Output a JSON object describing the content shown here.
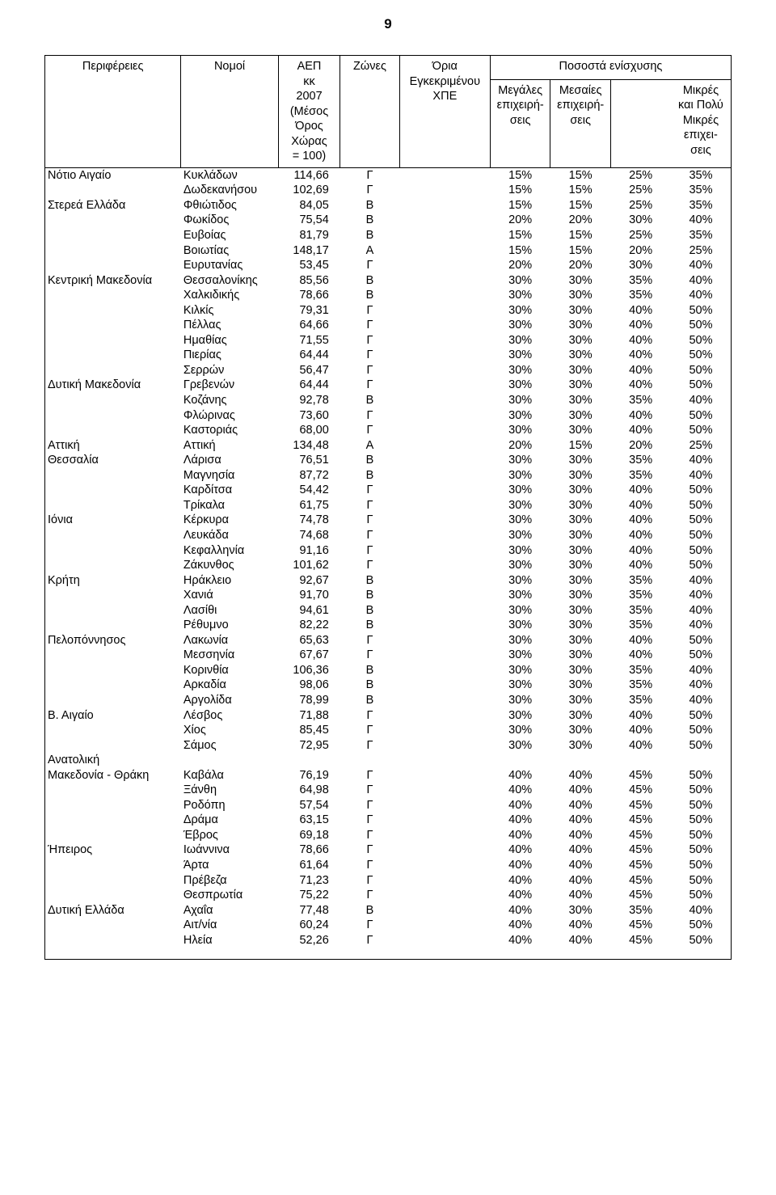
{
  "pageNumber": "9",
  "header": {
    "region": "Περιφέρειες",
    "nomos": "Νομοί",
    "aep": "ΑΕΠ\nκκ\n2007\n(Μέσος\nΌρος\nΧώρας\n= 100)",
    "zone": "Ζώνες",
    "limit": "Όρια\nΕγκεκριμένου\nΧΠΕ",
    "pctGroup": "Ποσοστά ενίσχυσης",
    "large": "Μεγάλες\nεπιχειρή-\nσεις",
    "medium": "Μεσαίες\nεπιχειρή-\nσεις",
    "small": "Μικρές\nκαι Πολύ\nΜικρές\nεπιχει-\nσεις"
  },
  "rows": [
    {
      "region": "Νότιο Αιγαίο",
      "nomos": "Κυκλάδων",
      "aep": "114,66",
      "zone": "Γ",
      "limit": "",
      "l": "15%",
      "m": "15%",
      "s1": "25%",
      "s2": "35%"
    },
    {
      "region": "",
      "nomos": "Δωδεκανήσου",
      "aep": "102,69",
      "zone": "Γ",
      "limit": "",
      "l": "15%",
      "m": "15%",
      "s1": "25%",
      "s2": "35%"
    },
    {
      "region": "Στερεά Ελλάδα",
      "nomos": "Φθιώτιδος",
      "aep": "84,05",
      "zone": "Β",
      "limit": "",
      "l": "15%",
      "m": "15%",
      "s1": "25%",
      "s2": "35%"
    },
    {
      "region": "",
      "nomos": "Φωκίδος",
      "aep": "75,54",
      "zone": "Β",
      "limit": "",
      "l": "20%",
      "m": "20%",
      "s1": "30%",
      "s2": "40%"
    },
    {
      "region": "",
      "nomos": "Ευβοίας",
      "aep": "81,79",
      "zone": "Β",
      "limit": "",
      "l": "15%",
      "m": "15%",
      "s1": "25%",
      "s2": "35%"
    },
    {
      "region": "",
      "nomos": "Βοιωτίας",
      "aep": "148,17",
      "zone": "Α",
      "limit": "",
      "l": "15%",
      "m": "15%",
      "s1": "20%",
      "s2": "25%"
    },
    {
      "region": "",
      "nomos": "Ευρυτανίας",
      "aep": "53,45",
      "zone": "Γ",
      "limit": "",
      "l": "20%",
      "m": "20%",
      "s1": "30%",
      "s2": "40%"
    },
    {
      "region": "Κεντρική Μακεδονία",
      "nomos": "Θεσσαλονίκης",
      "aep": "85,56",
      "zone": "Β",
      "limit": "",
      "l": "30%",
      "m": "30%",
      "s1": "35%",
      "s2": "40%"
    },
    {
      "region": "",
      "nomos": "Χαλκιδικής",
      "aep": "78,66",
      "zone": "Β",
      "limit": "",
      "l": "30%",
      "m": "30%",
      "s1": "35%",
      "s2": "40%"
    },
    {
      "region": "",
      "nomos": "Κιλκίς",
      "aep": "79,31",
      "zone": "Γ",
      "limit": "",
      "l": "30%",
      "m": "30%",
      "s1": "40%",
      "s2": "50%"
    },
    {
      "region": "",
      "nomos": "Πέλλας",
      "aep": "64,66",
      "zone": "Γ",
      "limit": "",
      "l": "30%",
      "m": "30%",
      "s1": "40%",
      "s2": "50%"
    },
    {
      "region": "",
      "nomos": "Ημαθίας",
      "aep": "71,55",
      "zone": "Γ",
      "limit": "",
      "l": "30%",
      "m": "30%",
      "s1": "40%",
      "s2": "50%"
    },
    {
      "region": "",
      "nomos": "Πιερίας",
      "aep": "64,44",
      "zone": "Γ",
      "limit": "",
      "l": "30%",
      "m": "30%",
      "s1": "40%",
      "s2": "50%"
    },
    {
      "region": "",
      "nomos": "Σερρών",
      "aep": "56,47",
      "zone": "Γ",
      "limit": "",
      "l": "30%",
      "m": "30%",
      "s1": "40%",
      "s2": "50%"
    },
    {
      "region": "Δυτική Μακεδονία",
      "nomos": "Γρεβενών",
      "aep": "64,44",
      "zone": "Γ",
      "limit": "",
      "l": "30%",
      "m": "30%",
      "s1": "40%",
      "s2": "50%"
    },
    {
      "region": "",
      "nomos": "Κοζάνης",
      "aep": "92,78",
      "zone": "Β",
      "limit": "",
      "l": "30%",
      "m": "30%",
      "s1": "35%",
      "s2": "40%"
    },
    {
      "region": "",
      "nomos": "Φλώρινας",
      "aep": "73,60",
      "zone": "Γ",
      "limit": "",
      "l": "30%",
      "m": "30%",
      "s1": "40%",
      "s2": "50%"
    },
    {
      "region": "",
      "nomos": "Καστοριάς",
      "aep": "68,00",
      "zone": "Γ",
      "limit": "",
      "l": "30%",
      "m": "30%",
      "s1": "40%",
      "s2": "50%"
    },
    {
      "region": "Αττική",
      "nomos": "Αττική",
      "aep": "134,48",
      "zone": "Α",
      "limit": "",
      "l": "20%",
      "m": "15%",
      "s1": "20%",
      "s2": "25%"
    },
    {
      "region": "Θεσσαλία",
      "nomos": "Λάρισα",
      "aep": "76,51",
      "zone": "Β",
      "limit": "",
      "l": "30%",
      "m": "30%",
      "s1": "35%",
      "s2": "40%"
    },
    {
      "region": "",
      "nomos": "Μαγνησία",
      "aep": "87,72",
      "zone": "Β",
      "limit": "",
      "l": "30%",
      "m": "30%",
      "s1": "35%",
      "s2": "40%"
    },
    {
      "region": "",
      "nomos": "Καρδίτσα",
      "aep": "54,42",
      "zone": "Γ",
      "limit": "",
      "l": "30%",
      "m": "30%",
      "s1": "40%",
      "s2": "50%"
    },
    {
      "region": "",
      "nomos": "Τρίκαλα",
      "aep": "61,75",
      "zone": "Γ",
      "limit": "",
      "l": "30%",
      "m": "30%",
      "s1": "40%",
      "s2": "50%"
    },
    {
      "region": "Ιόνια",
      "nomos": "Κέρκυρα",
      "aep": "74,78",
      "zone": "Γ",
      "limit": "",
      "l": "30%",
      "m": "30%",
      "s1": "40%",
      "s2": "50%"
    },
    {
      "region": "",
      "nomos": "Λευκάδα",
      "aep": "74,68",
      "zone": "Γ",
      "limit": "",
      "l": "30%",
      "m": "30%",
      "s1": "40%",
      "s2": "50%"
    },
    {
      "region": "",
      "nomos": "Κεφαλληνία",
      "aep": "91,16",
      "zone": "Γ",
      "limit": "",
      "l": "30%",
      "m": "30%",
      "s1": "40%",
      "s2": "50%"
    },
    {
      "region": "",
      "nomos": "Ζάκυνθος",
      "aep": "101,62",
      "zone": "Γ",
      "limit": "",
      "l": "30%",
      "m": "30%",
      "s1": "40%",
      "s2": "50%"
    },
    {
      "region": "Κρήτη",
      "nomos": "Ηράκλειο",
      "aep": "92,67",
      "zone": "Β",
      "limit": "",
      "l": "30%",
      "m": "30%",
      "s1": "35%",
      "s2": "40%"
    },
    {
      "region": "",
      "nomos": "Χανιά",
      "aep": "91,70",
      "zone": "Β",
      "limit": "",
      "l": "30%",
      "m": "30%",
      "s1": "35%",
      "s2": "40%"
    },
    {
      "region": "",
      "nomos": "Λασίθι",
      "aep": "94,61",
      "zone": "Β",
      "limit": "",
      "l": "30%",
      "m": "30%",
      "s1": "35%",
      "s2": "40%"
    },
    {
      "region": "",
      "nomos": "Ρέθυμνο",
      "aep": "82,22",
      "zone": "Β",
      "limit": "",
      "l": "30%",
      "m": "30%",
      "s1": "35%",
      "s2": "40%"
    },
    {
      "region": "Πελοπόννησος",
      "nomos": "Λακωνία",
      "aep": "65,63",
      "zone": "Γ",
      "limit": "",
      "l": "30%",
      "m": "30%",
      "s1": "40%",
      "s2": "50%"
    },
    {
      "region": "",
      "nomos": "Μεσσηνία",
      "aep": "67,67",
      "zone": "Γ",
      "limit": "",
      "l": "30%",
      "m": "30%",
      "s1": "40%",
      "s2": "50%"
    },
    {
      "region": "",
      "nomos": "Κορινθία",
      "aep": "106,36",
      "zone": "Β",
      "limit": "",
      "l": "30%",
      "m": "30%",
      "s1": "35%",
      "s2": "40%"
    },
    {
      "region": "",
      "nomos": "Αρκαδία",
      "aep": "98,06",
      "zone": "Β",
      "limit": "",
      "l": "30%",
      "m": "30%",
      "s1": "35%",
      "s2": "40%"
    },
    {
      "region": "",
      "nomos": "Αργολίδα",
      "aep": "78,99",
      "zone": "Β",
      "limit": "",
      "l": "30%",
      "m": "30%",
      "s1": "35%",
      "s2": "40%"
    },
    {
      "region": "Β. Αιγαίο",
      "nomos": "Λέσβος",
      "aep": "71,88",
      "zone": "Γ",
      "limit": "",
      "l": "30%",
      "m": "30%",
      "s1": "40%",
      "s2": "50%"
    },
    {
      "region": "",
      "nomos": "Χίος",
      "aep": "85,45",
      "zone": "Γ",
      "limit": "",
      "l": "30%",
      "m": "30%",
      "s1": "40%",
      "s2": "50%"
    },
    {
      "region": "",
      "nomos": "Σάμος",
      "aep": "72,95",
      "zone": "Γ",
      "limit": "",
      "l": "30%",
      "m": "30%",
      "s1": "40%",
      "s2": "50%"
    },
    {
      "region": "Ανατολική",
      "nomos": "",
      "aep": "",
      "zone": "",
      "limit": "",
      "l": "",
      "m": "",
      "s1": "",
      "s2": ""
    },
    {
      "region": "Μακεδονία - Θράκη",
      "nomos": "Καβάλα",
      "aep": "76,19",
      "zone": "Γ",
      "limit": "",
      "l": "40%",
      "m": "40%",
      "s1": "45%",
      "s2": "50%"
    },
    {
      "region": "",
      "nomos": "Ξάνθη",
      "aep": "64,98",
      "zone": "Γ",
      "limit": "",
      "l": "40%",
      "m": "40%",
      "s1": "45%",
      "s2": "50%"
    },
    {
      "region": "",
      "nomos": "Ροδόπη",
      "aep": "57,54",
      "zone": "Γ",
      "limit": "",
      "l": "40%",
      "m": "40%",
      "s1": "45%",
      "s2": "50%"
    },
    {
      "region": "",
      "nomos": "Δράμα",
      "aep": "63,15",
      "zone": "Γ",
      "limit": "",
      "l": "40%",
      "m": "40%",
      "s1": "45%",
      "s2": "50%"
    },
    {
      "region": "",
      "nomos": "Έβρος",
      "aep": "69,18",
      "zone": "Γ",
      "limit": "",
      "l": "40%",
      "m": "40%",
      "s1": "45%",
      "s2": "50%"
    },
    {
      "region": "Ήπειρος",
      "nomos": "Ιωάννινα",
      "aep": "78,66",
      "zone": "Γ",
      "limit": "",
      "l": "40%",
      "m": "40%",
      "s1": "45%",
      "s2": "50%"
    },
    {
      "region": "",
      "nomos": "Άρτα",
      "aep": "61,64",
      "zone": "Γ",
      "limit": "",
      "l": "40%",
      "m": "40%",
      "s1": "45%",
      "s2": "50%"
    },
    {
      "region": "",
      "nomos": "Πρέβεζα",
      "aep": "71,23",
      "zone": "Γ",
      "limit": "",
      "l": "40%",
      "m": "40%",
      "s1": "45%",
      "s2": "50%"
    },
    {
      "region": "",
      "nomos": "Θεσπρωτία",
      "aep": "75,22",
      "zone": "Γ",
      "limit": "",
      "l": "40%",
      "m": "40%",
      "s1": "45%",
      "s2": "50%"
    },
    {
      "region": "Δυτική Ελλάδα",
      "nomos": "Αχαΐα",
      "aep": "77,48",
      "zone": "Β",
      "limit": "",
      "l": "40%",
      "m": "30%",
      "s1": "35%",
      "s2": "40%"
    },
    {
      "region": "",
      "nomos": "Αιτ/νία",
      "aep": "60,24",
      "zone": "Γ",
      "limit": "",
      "l": "40%",
      "m": "40%",
      "s1": "45%",
      "s2": "50%"
    },
    {
      "region": "",
      "nomos": "Ηλεία",
      "aep": "52,26",
      "zone": "Γ",
      "limit": "",
      "l": "40%",
      "m": "40%",
      "s1": "45%",
      "s2": "50%"
    }
  ]
}
